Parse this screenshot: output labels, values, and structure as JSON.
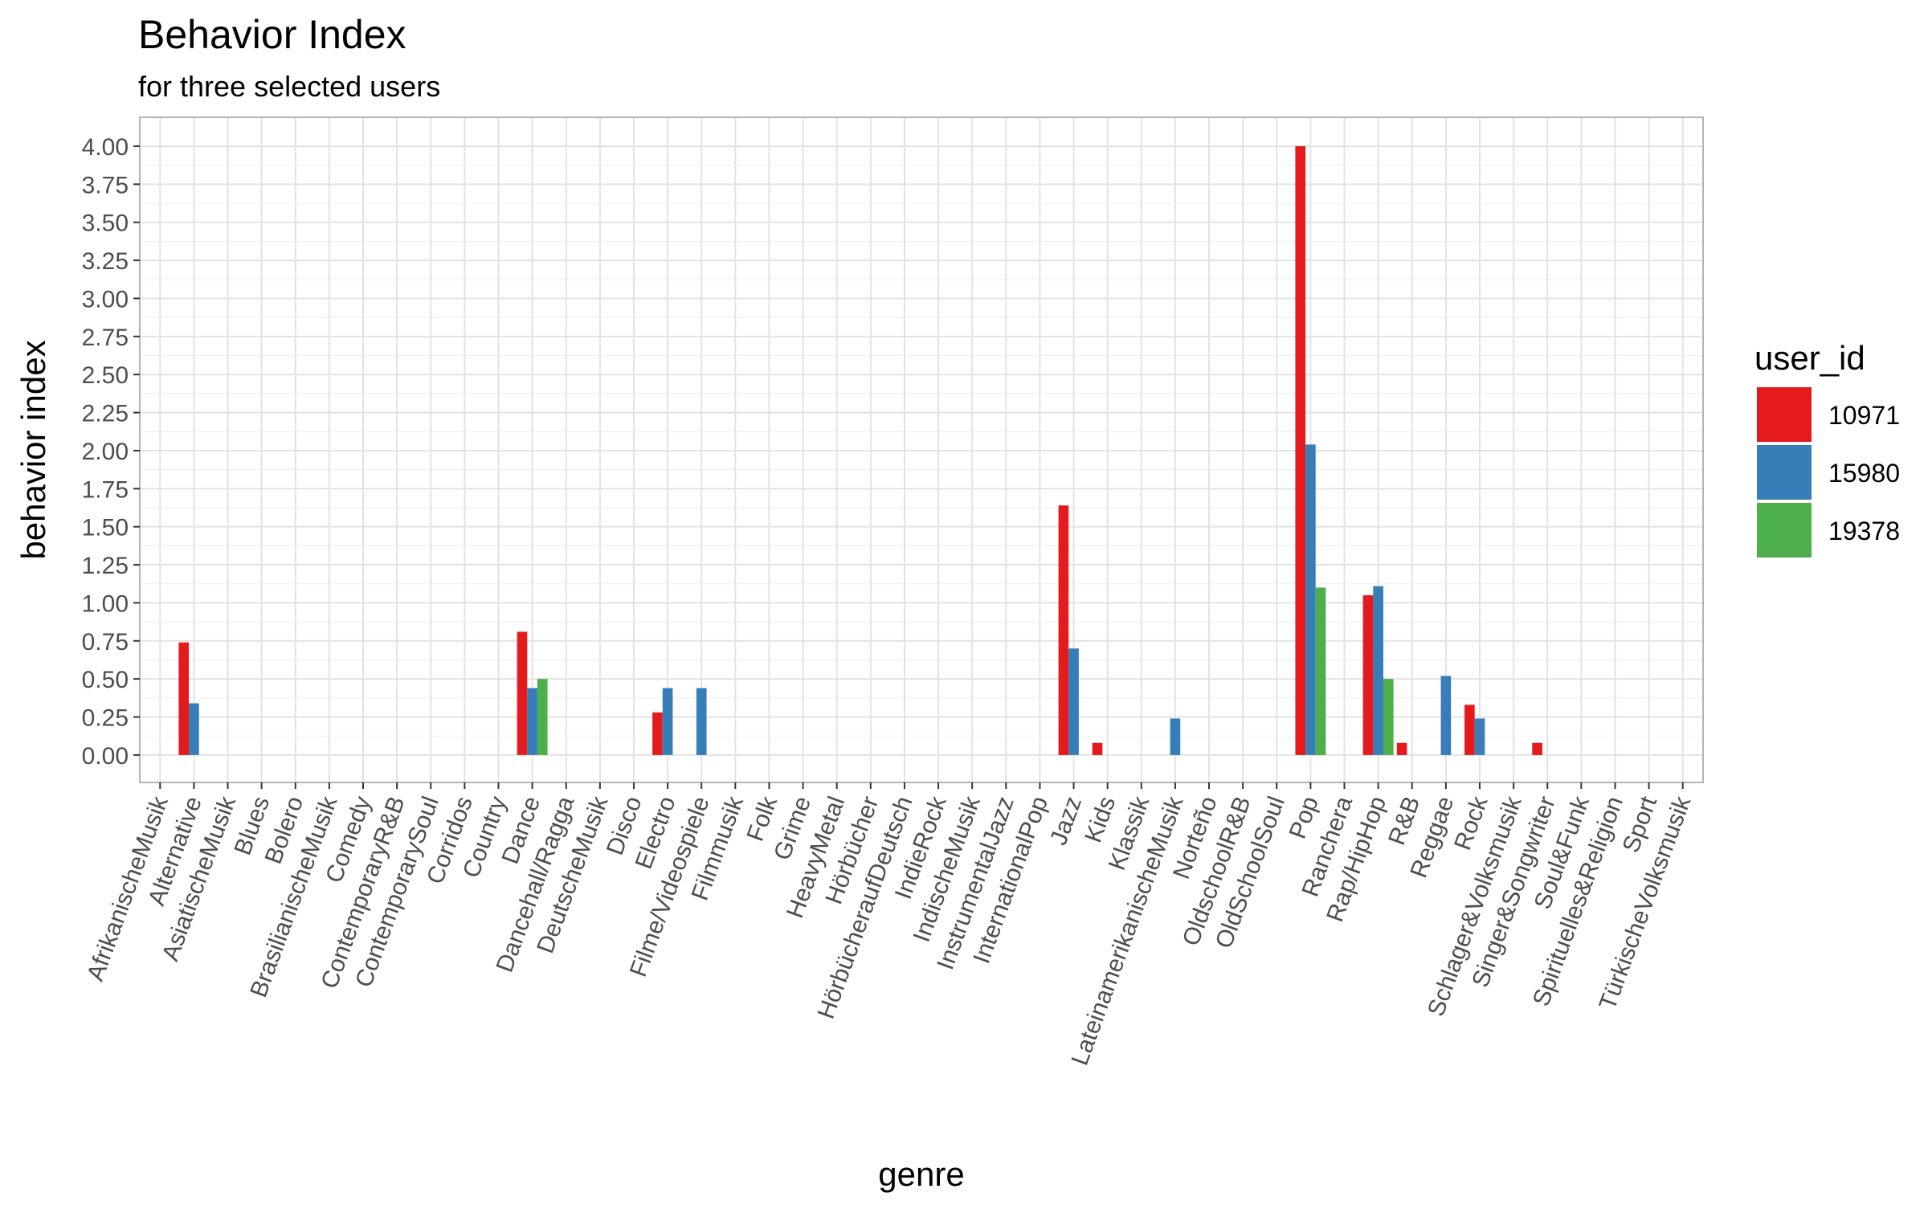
{
  "chart_data": {
    "type": "bar",
    "title": "Behavior Index",
    "subtitle": "for three selected users",
    "xlabel": "genre",
    "ylabel": "behavior index",
    "ylim": [
      -0.18,
      4.19
    ],
    "yticks": [
      "0.00",
      "0.25",
      "0.50",
      "0.75",
      "1.00",
      "1.25",
      "1.50",
      "1.75",
      "2.00",
      "2.25",
      "2.50",
      "2.75",
      "3.00",
      "3.25",
      "3.50",
      "3.75",
      "4.00"
    ],
    "grid": true,
    "legend_position": "right",
    "legend_title": "user_id",
    "categories": [
      "AfrikanischeMusik",
      "Alternative",
      "AsiatischeMusik",
      "Blues",
      "Bolero",
      "BrasilianischeMusik",
      "Comedy",
      "ContemporaryR&B",
      "ContemporarySoul",
      "Corridos",
      "Country",
      "Dance",
      "Dancehall/Ragga",
      "DeutscheMusik",
      "Disco",
      "Electro",
      "Filme/Videospiele",
      "Filmmusik",
      "Folk",
      "Grime",
      "HeavyMetal",
      "Hörbücher",
      "HörbücheraufDeutsch",
      "IndieRock",
      "IndischeMusik",
      "InstrumentalJazz",
      "InternationalPop",
      "Jazz",
      "Kids",
      "Klassik",
      "LateinamerikanischeMusik",
      "Norteño",
      "OldschoolR&B",
      "OldSchoolSoul",
      "Pop",
      "Ranchera",
      "Rap/HipHop",
      "R&B",
      "Reggae",
      "Rock",
      "Schlager&Volksmusik",
      "Singer&Songwriter",
      "Soul&Funk",
      "Spirituelles&Religion",
      "Sport",
      "TürkischeVolksmusik"
    ],
    "series": [
      {
        "name": "10971",
        "color": "#E41A1C",
        "values": [
          null,
          0.74,
          null,
          null,
          null,
          null,
          null,
          null,
          null,
          null,
          null,
          0.81,
          null,
          null,
          null,
          0.28,
          null,
          null,
          null,
          null,
          null,
          null,
          null,
          null,
          null,
          null,
          null,
          1.64,
          0.08,
          null,
          null,
          null,
          null,
          null,
          4.0,
          null,
          1.05,
          0.08,
          null,
          0.33,
          null,
          0.08,
          null,
          null,
          null,
          null
        ]
      },
      {
        "name": "15980",
        "color": "#377EB8",
        "values": [
          null,
          0.34,
          null,
          null,
          null,
          null,
          null,
          null,
          null,
          null,
          null,
          0.44,
          null,
          null,
          null,
          0.44,
          0.44,
          null,
          null,
          null,
          null,
          null,
          null,
          null,
          null,
          null,
          null,
          0.7,
          null,
          null,
          0.24,
          null,
          null,
          null,
          2.04,
          null,
          1.11,
          null,
          0.52,
          0.24,
          null,
          null,
          null,
          null,
          null,
          null
        ]
      },
      {
        "name": "19378",
        "color": "#4DAF4A",
        "values": [
          null,
          null,
          null,
          null,
          null,
          null,
          null,
          null,
          null,
          null,
          null,
          0.5,
          null,
          null,
          null,
          null,
          null,
          null,
          null,
          null,
          null,
          null,
          null,
          null,
          null,
          null,
          null,
          null,
          null,
          null,
          null,
          null,
          null,
          null,
          1.1,
          null,
          0.5,
          null,
          null,
          null,
          null,
          null,
          null,
          null,
          null,
          null
        ]
      }
    ]
  }
}
